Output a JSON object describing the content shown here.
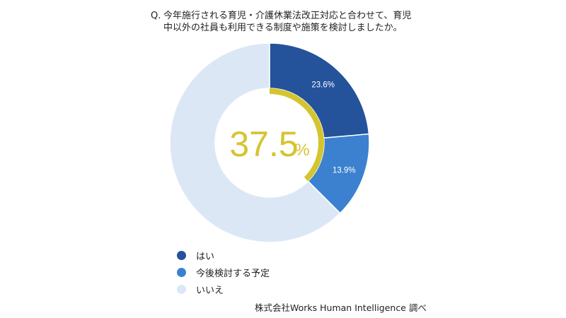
{
  "question": {
    "prefix": "Q.",
    "line1": "今年施行される育児・介護休業法改正対応と合わせて、育児",
    "line2": "中以外の社員も利用できる制度や施策を検討しましたか。"
  },
  "chart_data": {
    "type": "pie",
    "style": "donut",
    "title": "Q. 今年施行される育児・介護休業法改正対応と合わせて、育児中以外の社員も利用できる制度や施策を検討しましたか。",
    "categories": [
      "はい",
      "今後検討する予定",
      "いいえ"
    ],
    "values": [
      23.6,
      13.9,
      62.5
    ],
    "colors": [
      "#24529b",
      "#3b81cf",
      "#dce7f6"
    ],
    "data_labels": [
      "23.6%",
      "13.9%",
      ""
    ],
    "center_value": "37.5",
    "center_unit": "%",
    "center_ring_percent": 37.5,
    "center_color": "#d4c530",
    "legend_position": "bottom-left"
  },
  "legend": [
    {
      "label": "はい",
      "color": "#24529b"
    },
    {
      "label": "今後検討する予定",
      "color": "#3b81cf"
    },
    {
      "label": "いいえ",
      "color": "#dce7f6"
    }
  ],
  "source": "株式会社Works Human Intelligence 調べ"
}
